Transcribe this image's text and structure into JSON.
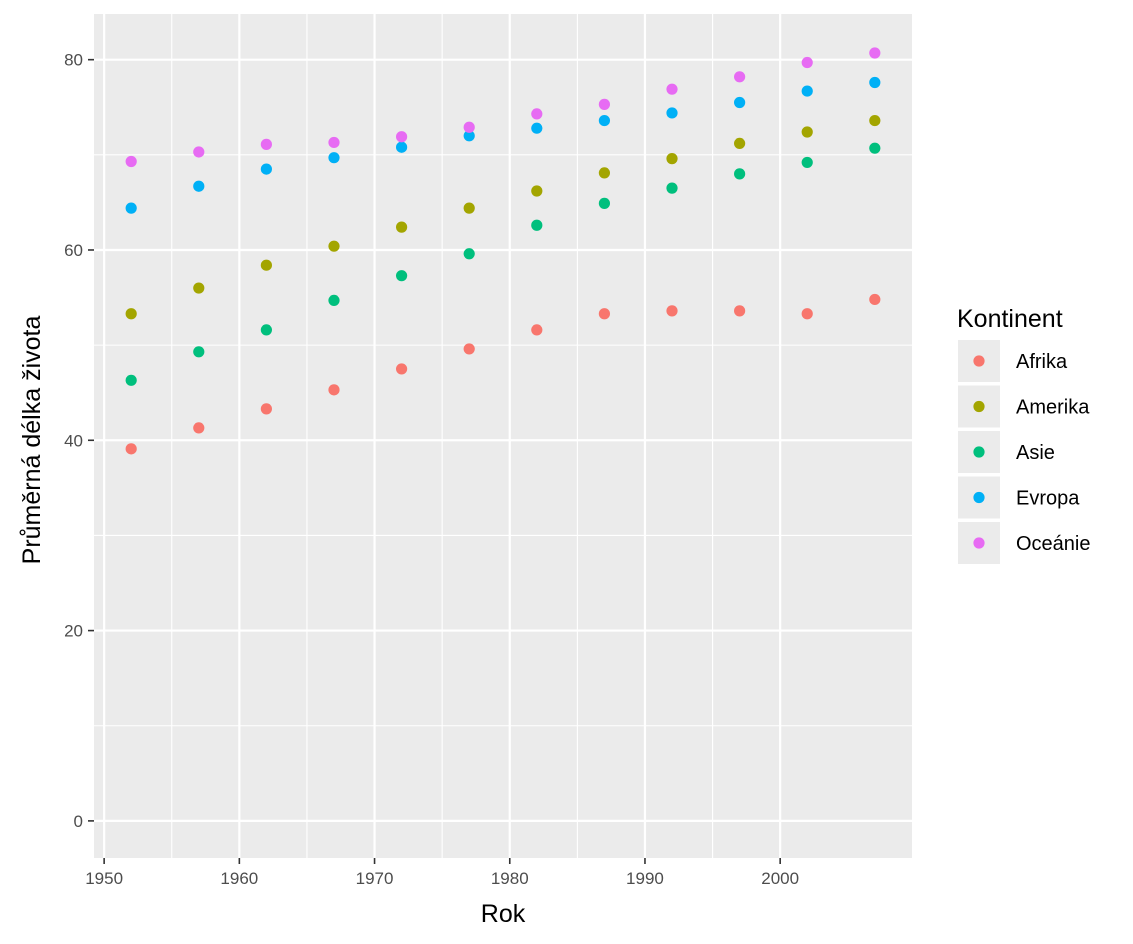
{
  "chart_data": {
    "type": "scatter",
    "title": "",
    "xlabel": "Rok",
    "ylabel": "Průměrná délka života",
    "xlim": [
      1949.25,
      2009.75
    ],
    "ylim": [
      -3.9,
      84.8
    ],
    "x_ticks": [
      1950,
      1960,
      1970,
      1980,
      1990,
      2000
    ],
    "y_ticks": [
      0,
      20,
      40,
      60,
      80
    ],
    "grid": true,
    "legend": {
      "title": "Kontinent",
      "position": "right"
    },
    "x": [
      1952,
      1957,
      1962,
      1967,
      1972,
      1977,
      1982,
      1987,
      1992,
      1997,
      2002,
      2007
    ],
    "series": [
      {
        "name": "Afrika",
        "color": "#F8766D",
        "values": [
          39.1,
          41.3,
          43.3,
          45.3,
          47.5,
          49.6,
          51.6,
          53.3,
          53.6,
          53.6,
          53.3,
          54.8
        ]
      },
      {
        "name": "Amerika",
        "color": "#A3A500",
        "values": [
          53.3,
          56.0,
          58.4,
          60.4,
          62.4,
          64.4,
          66.2,
          68.1,
          69.6,
          71.2,
          72.4,
          73.6
        ]
      },
      {
        "name": "Asie",
        "color": "#00BF7D",
        "values": [
          46.3,
          49.3,
          51.6,
          54.7,
          57.3,
          59.6,
          62.6,
          64.9,
          66.5,
          68.0,
          69.2,
          70.7
        ]
      },
      {
        "name": "Evropa",
        "color": "#00B0F6",
        "values": [
          64.4,
          66.7,
          68.5,
          69.7,
          70.8,
          72.0,
          72.8,
          73.6,
          74.4,
          75.5,
          76.7,
          77.6
        ]
      },
      {
        "name": "Oceánie",
        "color": "#E76BF3",
        "values": [
          69.3,
          70.3,
          71.1,
          71.3,
          71.9,
          72.9,
          74.3,
          75.3,
          76.9,
          78.2,
          79.7,
          80.7
        ]
      }
    ]
  }
}
